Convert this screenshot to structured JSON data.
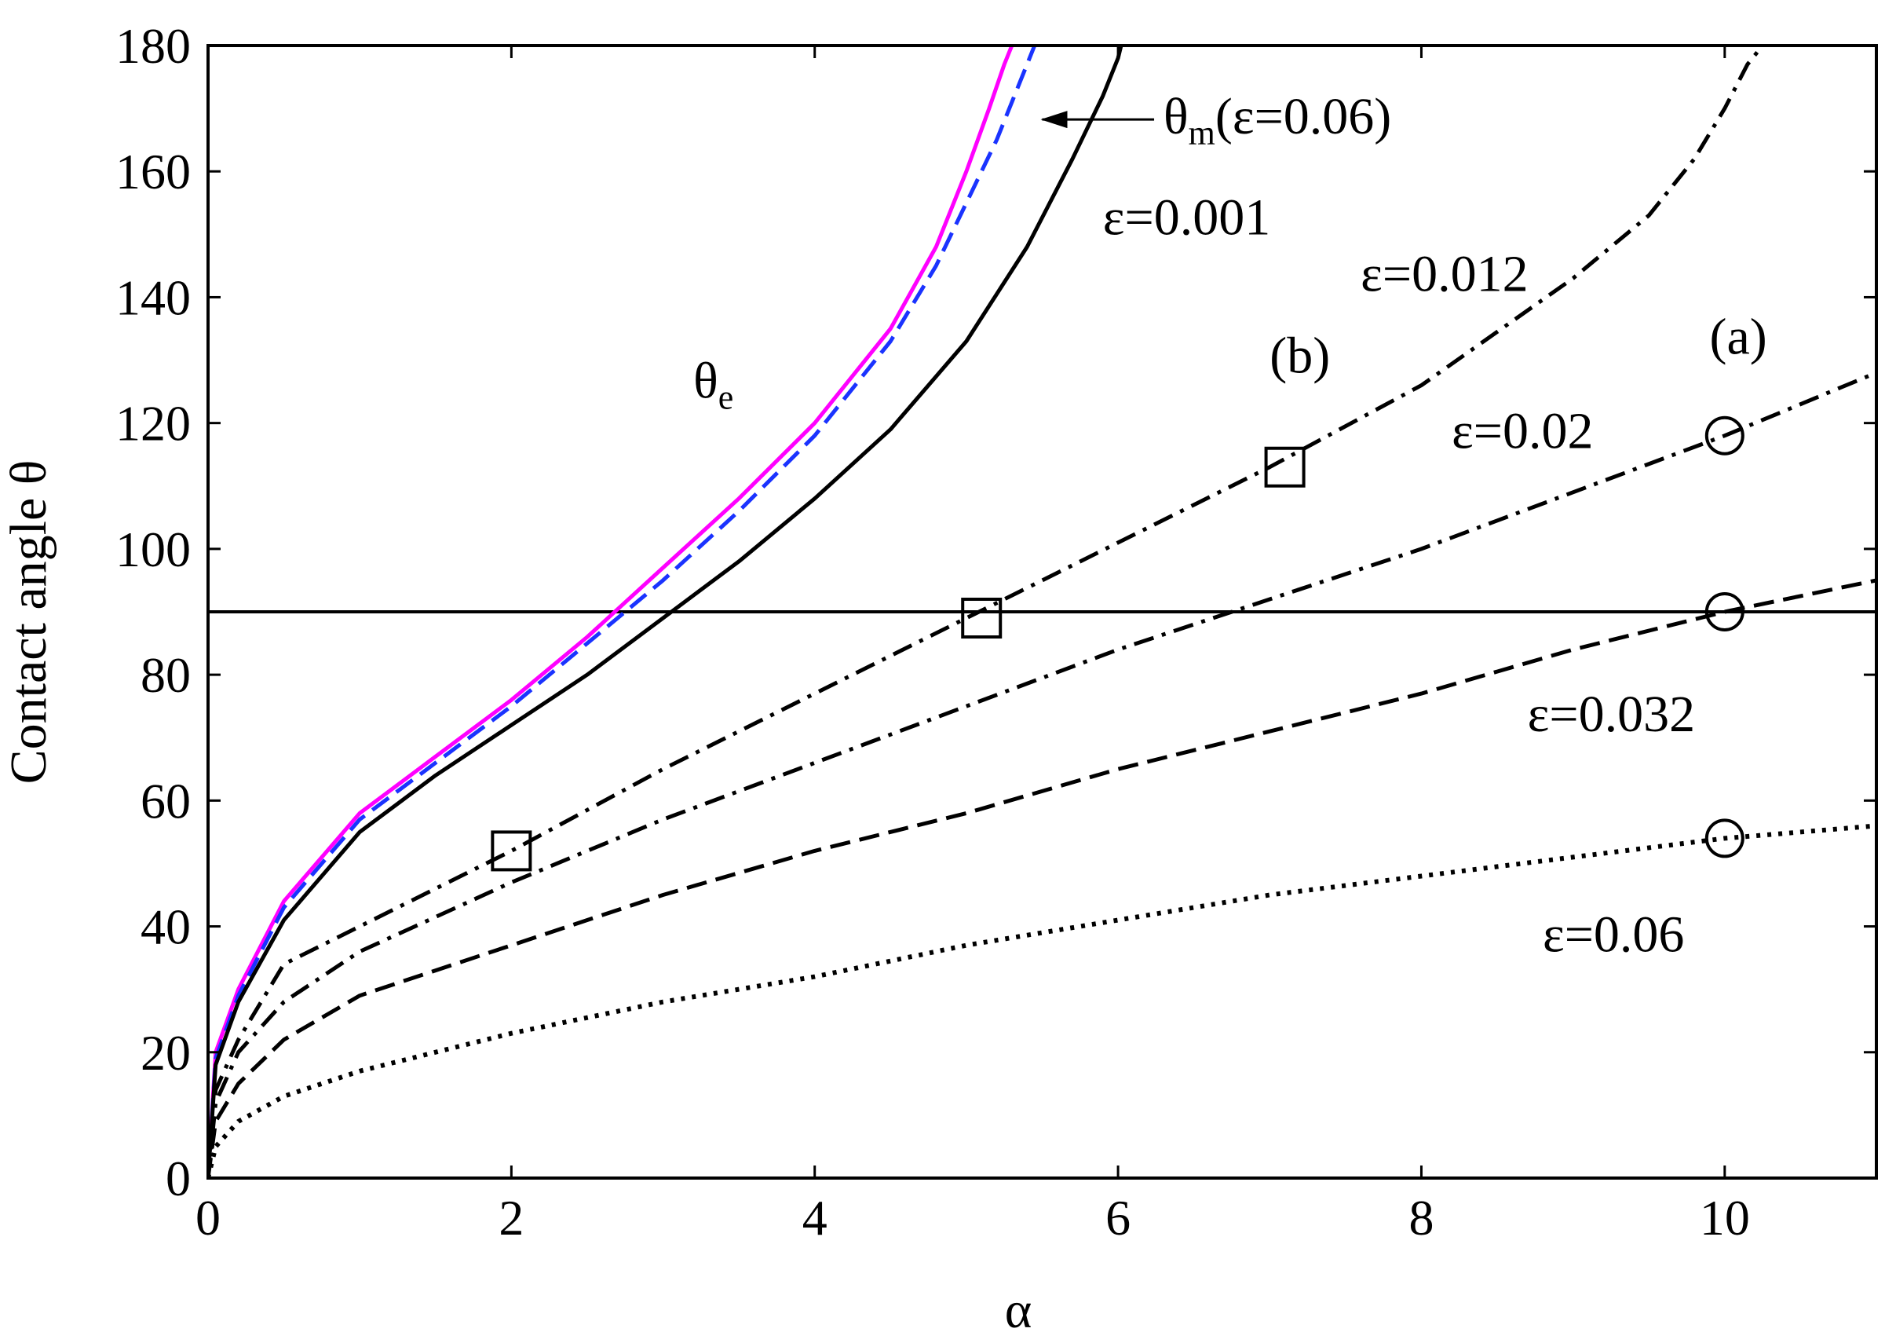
{
  "chart_data": {
    "type": "line",
    "xlabel": "α",
    "ylabel": "Contact angle θ",
    "xlim": [
      0,
      11
    ],
    "ylim": [
      0,
      180
    ],
    "x_ticks": [
      0,
      2,
      4,
      6,
      8,
      10
    ],
    "y_ticks": [
      0,
      20,
      40,
      60,
      80,
      100,
      120,
      140,
      160,
      180
    ],
    "grid": false,
    "reference_line": {
      "y": 90,
      "color": "#000000"
    },
    "series": [
      {
        "color": "#ff00ff",
        "style": "solid",
        "x": [
          0,
          0.05,
          0.2,
          0.5,
          1,
          1.5,
          2,
          2.5,
          3,
          3.5,
          4,
          4.5,
          4.8,
          5.0,
          5.15,
          5.25,
          5.3
        ],
        "y": [
          0,
          20,
          30,
          44,
          58,
          67,
          76,
          86,
          97,
          108,
          120,
          135,
          148,
          160,
          170,
          177,
          180
        ]
      },
      {
        "color": "#1a33ff",
        "style": "dashed",
        "x": [
          0,
          0.05,
          0.2,
          0.5,
          1,
          1.5,
          2,
          2.5,
          3,
          3.5,
          4,
          4.5,
          4.8,
          5.0,
          5.2,
          5.35,
          5.45
        ],
        "y": [
          0,
          19,
          29,
          43,
          57,
          66,
          75,
          85,
          95,
          106,
          118,
          133,
          145,
          155,
          165,
          174,
          180
        ]
      },
      {
        "color": "#000000",
        "style": "solid",
        "x": [
          0,
          0.05,
          0.2,
          0.5,
          1,
          1.5,
          2,
          2.5,
          3,
          3.5,
          4,
          4.5,
          5,
          5.4,
          5.7,
          5.9,
          6.0,
          6.02
        ],
        "y": [
          0,
          18,
          28,
          41,
          55,
          64,
          72,
          80,
          89,
          98,
          108,
          119,
          133,
          148,
          162,
          172,
          178,
          180
        ]
      },
      {
        "color": "#000000",
        "style": "dash-dot",
        "x": [
          0,
          0.05,
          0.2,
          0.5,
          1,
          1.5,
          2,
          3,
          4,
          5,
          6,
          7,
          8,
          9,
          9.5,
          9.8,
          10.0,
          10.15,
          10.25
        ],
        "y": [
          0,
          14,
          22,
          34,
          40,
          46,
          52,
          65,
          77,
          89,
          101,
          113,
          126,
          143,
          153,
          162,
          170,
          177,
          180
        ]
      },
      {
        "color": "#000000",
        "style": "dash-dot",
        "x": [
          0,
          0.05,
          0.2,
          0.5,
          1,
          2,
          3,
          4,
          5,
          6,
          7,
          8,
          9,
          10,
          11
        ],
        "y": [
          0,
          12,
          20,
          28,
          36,
          47,
          57,
          66,
          75,
          84,
          92,
          100,
          109,
          118,
          128
        ]
      },
      {
        "color": "#000000",
        "style": "dashed",
        "x": [
          0,
          0.05,
          0.2,
          0.5,
          1,
          2,
          3,
          4,
          5,
          6,
          7,
          8,
          9,
          10,
          11
        ],
        "y": [
          0,
          9,
          15,
          22,
          29,
          37,
          45,
          52,
          58,
          65,
          71,
          77,
          84,
          90,
          95
        ]
      },
      {
        "color": "#000000",
        "style": "dotted",
        "x": [
          0,
          0.05,
          0.2,
          0.5,
          1,
          2,
          3,
          4,
          5,
          6,
          7,
          8,
          9,
          10,
          11
        ],
        "y": [
          0,
          5,
          9,
          13,
          17,
          23,
          28,
          32,
          37,
          41,
          45,
          48,
          51,
          54,
          56
        ]
      }
    ],
    "square_markers": [
      {
        "x": 2.0,
        "y": 52
      },
      {
        "x": 5.1,
        "y": 89
      },
      {
        "x": 7.1,
        "y": 113
      }
    ],
    "circle_markers": [
      {
        "x": 10.0,
        "y": 118
      },
      {
        "x": 10.0,
        "y": 90
      },
      {
        "x": 10.0,
        "y": 54
      }
    ],
    "annotations": [
      {
        "symbol": "θ",
        "subscript": "m",
        "text": "(ε=0.06)",
        "x": 6.3,
        "y": 166,
        "arrow_to": {
          "x": 5.5,
          "y": 166
        }
      },
      {
        "text": "ε=0.001",
        "x": 5.9,
        "y": 150
      },
      {
        "text": "ε=0.012",
        "x": 7.6,
        "y": 141
      },
      {
        "symbol": "θ",
        "subscript": "e",
        "x": 3.2,
        "y": 124
      },
      {
        "text": "(b)",
        "x": 7.0,
        "y": 128
      },
      {
        "text": "(a)",
        "x": 9.9,
        "y": 131
      },
      {
        "text": "ε=0.02",
        "x": 8.2,
        "y": 116
      },
      {
        "text": "ε=0.032",
        "x": 8.7,
        "y": 71
      },
      {
        "text": "ε=0.06",
        "x": 8.8,
        "y": 36
      }
    ]
  }
}
